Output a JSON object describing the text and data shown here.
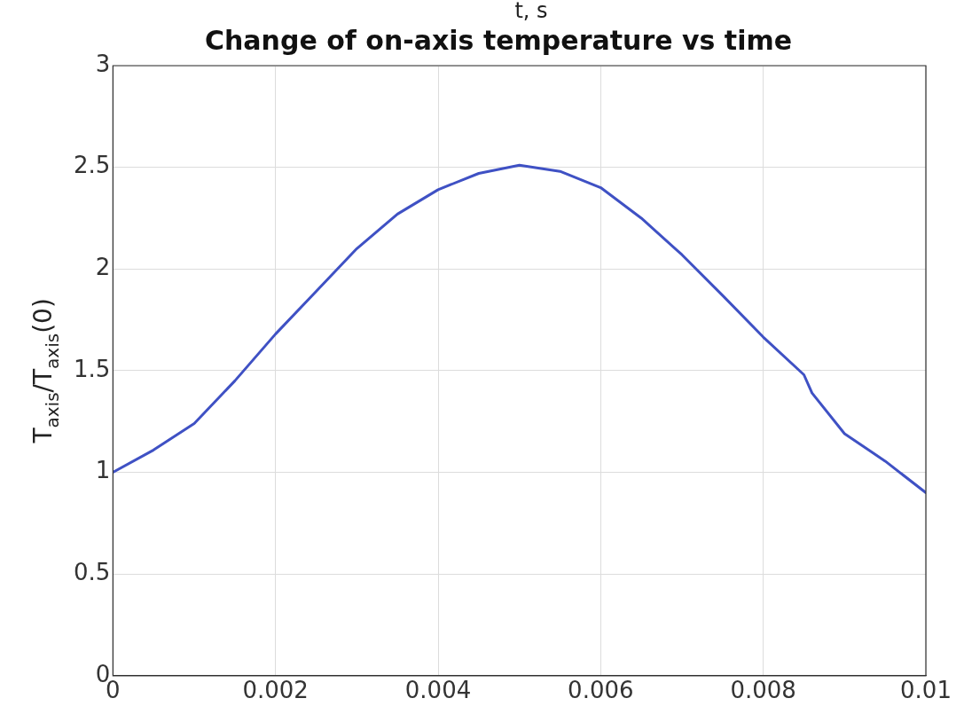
{
  "chart_data": {
    "type": "line",
    "title": "Change of on-axis temperature vs time",
    "ylabel": "T$_{axis}$/T$_{axis}$(0)",
    "annotations": [
      "t, s"
    ],
    "x": [
      0,
      0.0005,
      0.001,
      0.0015,
      0.002,
      0.0025,
      0.003,
      0.0035,
      0.004,
      0.0045,
      0.005,
      0.0055,
      0.006,
      0.0065,
      0.007,
      0.0075,
      0.008,
      0.0085,
      0.0086,
      0.009,
      0.0095,
      0.01
    ],
    "series": [
      {
        "color": "#3f51c4",
        "values": [
          1.0,
          1.11,
          1.24,
          1.45,
          1.68,
          1.89,
          2.1,
          2.27,
          2.39,
          2.47,
          2.51,
          2.48,
          2.4,
          2.25,
          2.07,
          1.87,
          1.665,
          1.48,
          1.39,
          1.19,
          1.055,
          0.9
        ]
      }
    ],
    "xlim": [
      0,
      0.01
    ],
    "xticks": [
      0,
      0.002,
      0.004,
      0.006,
      0.008,
      0.01
    ],
    "ylim": [
      0,
      3
    ],
    "yticks": [
      0,
      0.5,
      1,
      1.5,
      2,
      2.5,
      3
    ],
    "grid": true,
    "legend": false,
    "marker": "none",
    "line_style": "solid"
  }
}
